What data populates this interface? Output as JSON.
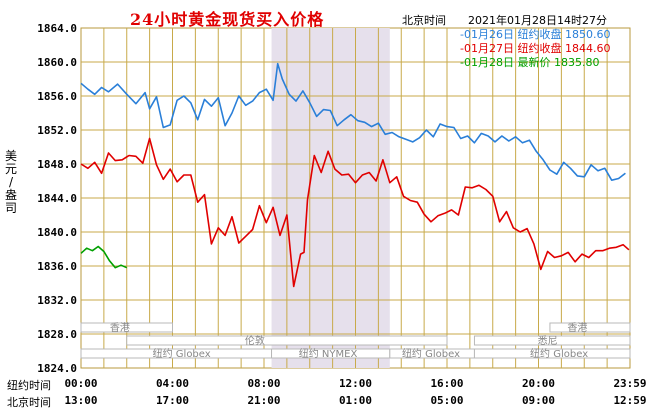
{
  "title": "24小时黄金现货买入价格",
  "timezone_label": "北京时间",
  "datetime": "2021年01月28日14时27分",
  "y_axis_label": [
    "美",
    "元",
    "/",
    "盎",
    "司"
  ],
  "legend": [
    {
      "date": "01月26日",
      "label": "纽约收盘",
      "value": "1850.60",
      "color": "#2a7fd8"
    },
    {
      "date": "01月27日",
      "label": "纽约收盘",
      "value": "1844.60",
      "color": "#e00000"
    },
    {
      "date": "01月28日",
      "label": "最新价",
      "value": "1835.80",
      "color": "#00a000"
    }
  ],
  "row1_label": "纽约时间",
  "row2_label": "北京时间",
  "ny_ticks": [
    "00:00",
    "04:00",
    "08:00",
    "12:00",
    "16:00",
    "20:00",
    "23:59"
  ],
  "bj_ticks": [
    "13:00",
    "17:00",
    "21:00",
    "01:00",
    "05:00",
    "09:00",
    "12:59"
  ],
  "sessions": [
    "香港",
    "香港",
    "伦敦",
    "悉尼",
    "纽约 Globex",
    "纽约 NYMEX",
    "纽约 Globex",
    "纽约 Globex"
  ],
  "chart_data": {
    "type": "line",
    "ylabel": "美元/盎司",
    "y_ticks": [
      "1864.0",
      "1860.0",
      "1856.0",
      "1852.0",
      "1848.0",
      "1844.0",
      "1840.0",
      "1836.0",
      "1832.0",
      "1828.0",
      "1824.0"
    ],
    "ylim": [
      1824,
      1864
    ],
    "xlim": [
      0,
      24
    ],
    "x_unit": "hours from 00:00 New York time",
    "grid": true,
    "series": [
      {
        "name": "01月26日",
        "color": "#2a7fd8",
        "x": [
          0,
          0.3,
          0.6,
          0.9,
          1.2,
          1.6,
          2,
          2.4,
          2.8,
          3,
          3.3,
          3.6,
          3.9,
          4.2,
          4.5,
          4.8,
          5.1,
          5.4,
          5.7,
          6,
          6.3,
          6.6,
          6.9,
          7.2,
          7.5,
          7.8,
          8.1,
          8.4,
          8.6,
          8.8,
          9.1,
          9.4,
          9.7,
          10,
          10.3,
          10.6,
          10.9,
          11.2,
          11.5,
          11.8,
          12.1,
          12.4,
          12.7,
          13,
          13.3,
          13.6,
          13.9,
          14.2,
          14.5,
          14.8,
          15.1,
          15.4,
          15.7,
          16,
          16.3,
          16.6,
          16.9,
          17.2,
          17.5,
          17.8,
          18.1,
          18.4,
          18.7,
          19,
          19.3,
          19.6,
          19.9,
          20.2,
          20.5,
          20.8,
          21.1,
          21.4,
          21.7,
          22,
          22.3,
          22.6,
          22.9,
          23.2,
          23.5,
          23.8
        ],
        "values": [
          1857.5,
          1856.8,
          1856.2,
          1857,
          1856.5,
          1857.4,
          1856.2,
          1855.1,
          1856.4,
          1854.5,
          1855.9,
          1852.3,
          1852.6,
          1855.5,
          1856,
          1855.2,
          1853.2,
          1855.6,
          1854.8,
          1855.8,
          1852.5,
          1854,
          1856,
          1854.9,
          1855.4,
          1856.4,
          1856.8,
          1855.5,
          1859.8,
          1858,
          1856.2,
          1855.4,
          1856.6,
          1855.2,
          1853.6,
          1854.4,
          1854.3,
          1852.5,
          1853.2,
          1853.8,
          1853.1,
          1852.9,
          1852.4,
          1852.8,
          1851.5,
          1851.7,
          1851.2,
          1850.9,
          1850.6,
          1851.1,
          1852,
          1851.2,
          1852.7,
          1852.4,
          1852.3,
          1851,
          1851.3,
          1850.5,
          1851.6,
          1851.3,
          1850.6,
          1851.3,
          1850.7,
          1851.2,
          1850.5,
          1850.8,
          1849.5,
          1848.5,
          1847.3,
          1846.8,
          1848.2,
          1847.5,
          1846.6,
          1846.5,
          1847.9,
          1847.2,
          1847.5,
          1846.1,
          1846.3,
          1846.9
        ]
      },
      {
        "name": "01月27日",
        "color": "#e00000",
        "x": [
          0,
          0.3,
          0.6,
          0.9,
          1.2,
          1.5,
          1.8,
          2.1,
          2.4,
          2.7,
          3,
          3.3,
          3.6,
          3.9,
          4.2,
          4.5,
          4.8,
          5.1,
          5.4,
          5.7,
          6,
          6.3,
          6.6,
          6.9,
          7.2,
          7.5,
          7.8,
          8.1,
          8.4,
          8.7,
          9,
          9.3,
          9.6,
          9.75,
          9.9,
          10.2,
          10.5,
          10.8,
          11.1,
          11.4,
          11.7,
          12,
          12.3,
          12.6,
          12.9,
          13.2,
          13.5,
          13.8,
          14.1,
          14.4,
          14.7,
          15,
          15.3,
          15.6,
          15.9,
          16.2,
          16.5,
          16.8,
          17.1,
          17.4,
          17.7,
          18,
          18.3,
          18.6,
          18.9,
          19.2,
          19.5,
          19.8,
          20.1,
          20.4,
          20.7,
          21,
          21.3,
          21.6,
          21.9,
          22.2,
          22.5,
          22.8,
          23.1,
          23.4,
          23.7,
          23.95
        ],
        "values": [
          1848,
          1847.5,
          1848.2,
          1846.9,
          1849.3,
          1848.4,
          1848.5,
          1849,
          1848.9,
          1848.1,
          1851,
          1847.9,
          1846.2,
          1847.4,
          1845.9,
          1846.7,
          1846.7,
          1843.5,
          1844.4,
          1838.6,
          1840.5,
          1839.6,
          1841.8,
          1838.7,
          1839.5,
          1840.3,
          1843.1,
          1841.1,
          1842.9,
          1839.6,
          1842,
          1833.6,
          1837.4,
          1837.6,
          1843.8,
          1849,
          1847,
          1849.5,
          1847.4,
          1846.7,
          1846.8,
          1845.8,
          1846.7,
          1847,
          1846,
          1848.5,
          1845.8,
          1846.5,
          1844.2,
          1843.7,
          1843.5,
          1842.1,
          1841.2,
          1841.9,
          1842.2,
          1842.6,
          1842,
          1845.3,
          1845.2,
          1845.5,
          1845,
          1844.2,
          1841.2,
          1842.4,
          1840.5,
          1840,
          1840.4,
          1838.6,
          1835.6,
          1837.7,
          1837,
          1837.2,
          1837.6,
          1836.5,
          1837.4,
          1837,
          1837.8,
          1837.8,
          1838.1,
          1838.2,
          1838.5,
          1837.9
        ]
      },
      {
        "name": "01月28日",
        "color": "#00a000",
        "x": [
          0,
          0.25,
          0.5,
          0.75,
          1,
          1.25,
          1.5,
          1.75,
          2
        ],
        "values": [
          1837.5,
          1838.1,
          1837.8,
          1838.3,
          1837.7,
          1836.6,
          1835.8,
          1836.1,
          1835.8
        ]
      }
    ]
  }
}
